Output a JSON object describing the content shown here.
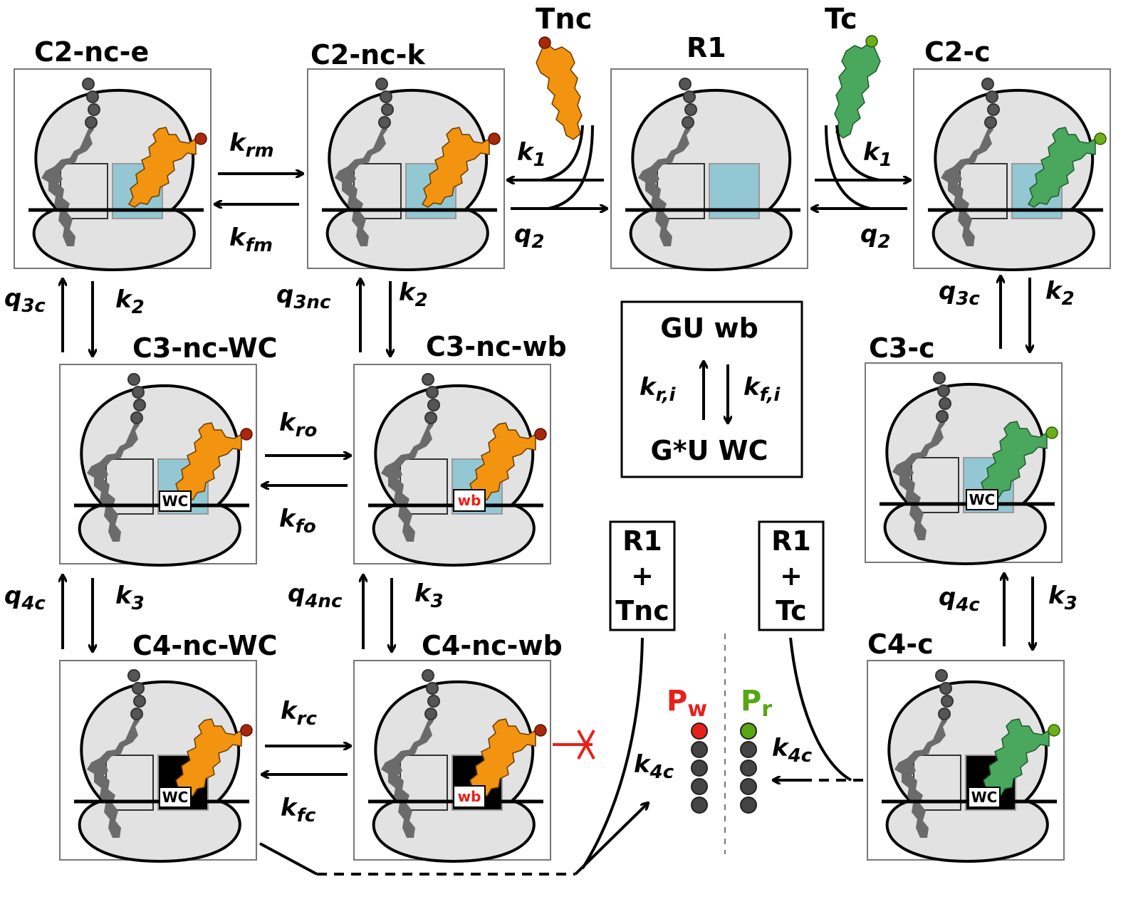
{
  "colors": {
    "noncognate_trna": "#f29410",
    "noncognate_tip": "#a8280d",
    "cognate_trna": "#4aa85e",
    "cognate_tip": "#6cb01c",
    "ribosome": "#e2e2e2",
    "a_site": "#93c7d3",
    "p_site_trna": "#6b6b6b",
    "wobble_text": "#e8201a",
    "product_wrong": "#e8201a",
    "product_right": "#5aa513",
    "accommodated_site": "#000000"
  },
  "states": {
    "c2_nc_e": "C2-nc-e",
    "c2_nc_k": "C2-nc-k",
    "r1": "R1",
    "c2_c": "C2-c",
    "c3_nc_wc": "C3-nc-WC",
    "c3_nc_wb": "C3-nc-wb",
    "c3_c": "C3-c",
    "c4_nc_wc": "C4-nc-WC",
    "c4_nc_wb": "C4-nc-wb",
    "c4_c": "C4-c"
  },
  "trna": {
    "noncognate": "Tnc",
    "cognate": "Tc"
  },
  "pair_tags": {
    "wc": "WC",
    "wb": "wb"
  },
  "rates": {
    "k_rm": {
      "base": "k",
      "sub": "rm"
    },
    "k_fm": {
      "base": "k",
      "sub": "fm"
    },
    "k1_left": {
      "base": "k",
      "sub": "1"
    },
    "q2_left": {
      "base": "q",
      "sub": "2"
    },
    "k1_right": {
      "base": "k",
      "sub": "1"
    },
    "q2_right": {
      "base": "q",
      "sub": "2"
    },
    "q3c_left": {
      "base": "q",
      "sub": "3c"
    },
    "k2_left": {
      "base": "k",
      "sub": "2"
    },
    "q3nc": {
      "base": "q",
      "sub": "3nc"
    },
    "k2_mid": {
      "base": "k",
      "sub": "2"
    },
    "q3c_right": {
      "base": "q",
      "sub": "3c"
    },
    "k2_right": {
      "base": "k",
      "sub": "2"
    },
    "k_ro": {
      "base": "k",
      "sub": "ro"
    },
    "k_fo": {
      "base": "k",
      "sub": "fo"
    },
    "q4c_left": {
      "base": "q",
      "sub": "4c"
    },
    "k3_left": {
      "base": "k",
      "sub": "3"
    },
    "q4nc": {
      "base": "q",
      "sub": "4nc"
    },
    "k3_mid": {
      "base": "k",
      "sub": "3"
    },
    "q4c_right": {
      "base": "q",
      "sub": "4c"
    },
    "k3_right": {
      "base": "k",
      "sub": "3"
    },
    "k_rc": {
      "base": "k",
      "sub": "rc"
    },
    "k_fc": {
      "base": "k",
      "sub": "fc"
    },
    "k4c_left": {
      "base": "k",
      "sub": "4c"
    },
    "k4c_right": {
      "base": "k",
      "sub": "4c"
    }
  },
  "legend": {
    "top": "GU wb",
    "bottom": "G*U WC",
    "k_ri": {
      "base": "k",
      "sub": "r,i"
    },
    "k_fi": {
      "base": "k",
      "sub": "f,i"
    }
  },
  "reset_boxes": {
    "noncognate": [
      "R1",
      "+",
      "Tnc"
    ],
    "cognate": [
      "R1",
      "+",
      "Tc"
    ]
  },
  "products": {
    "wrong": {
      "base": "P",
      "sub": "w"
    },
    "right": {
      "base": "P",
      "sub": "r"
    }
  }
}
